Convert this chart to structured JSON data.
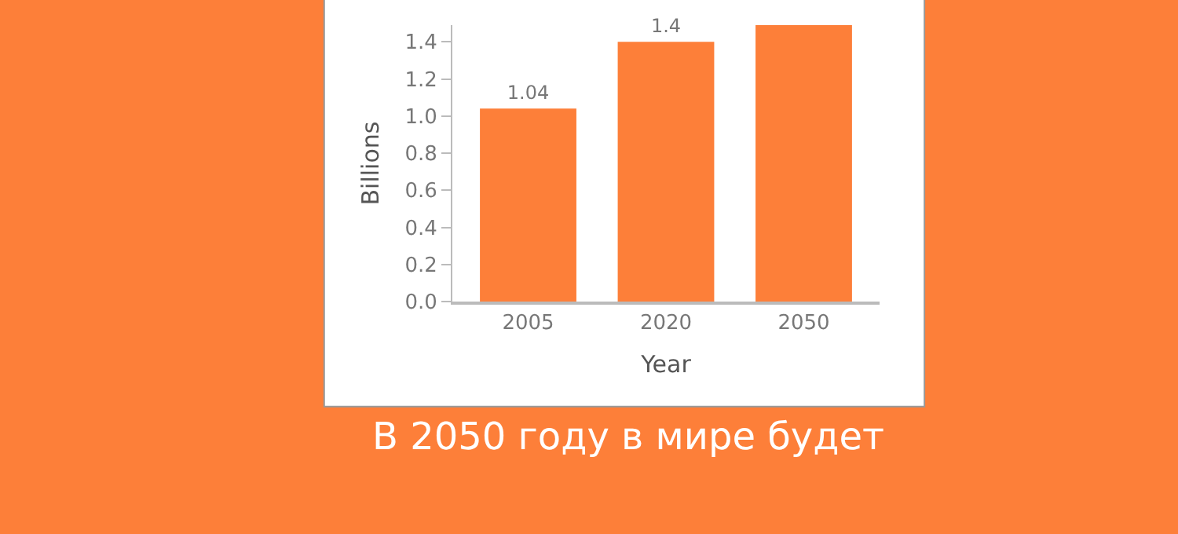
{
  "chart_data": {
    "type": "bar",
    "xlabel": "Year",
    "ylabel": "Billions",
    "categories": [
      "2005",
      "2020",
      "2050"
    ],
    "values": [
      1.04,
      1.4,
      1.49
    ],
    "value_labels": [
      "1.04",
      "1.4",
      null
    ],
    "color": "#fd7f39",
    "ylim": [
      0,
      1.49
    ],
    "yticks": [
      {
        "value": 0,
        "label": "0.0"
      },
      {
        "value": 0.2,
        "label": "0.2"
      },
      {
        "value": 0.4,
        "label": "0.4"
      },
      {
        "value": 0.6,
        "label": "0.6"
      },
      {
        "value": 0.8,
        "label": "0.8"
      },
      {
        "value": 1.0,
        "label": "1.0"
      },
      {
        "value": 1.2,
        "label": "1.2"
      },
      {
        "value": 1.4,
        "label": "1.4"
      }
    ],
    "legend": false,
    "annotations": [
      "В 2050 году в мире будет"
    ]
  }
}
